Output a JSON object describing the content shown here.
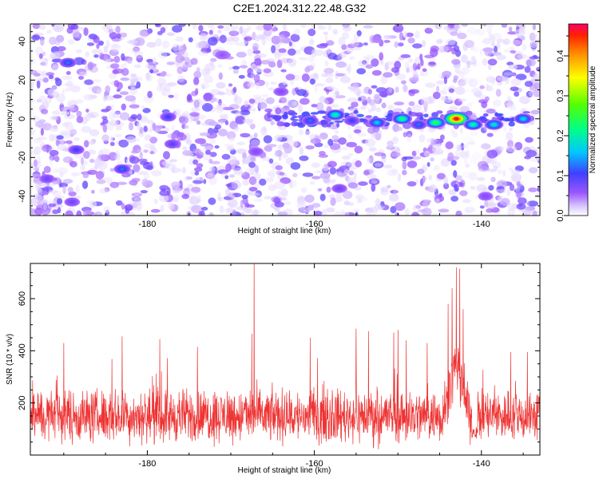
{
  "title": "C2E1.2024.312.22.48.G32",
  "colors": {
    "snr_line": "#ee3333",
    "spectrogram_base": "#7a2cf0",
    "frame": "#000000"
  },
  "chart_data": [
    {
      "type": "heatmap",
      "xlabel": "Height of straight line (km)",
      "ylabel": "Frequency (Hz)",
      "xlim": [
        -194,
        -133
      ],
      "ylim": [
        -50,
        49
      ],
      "x_ticks": [
        -180,
        -160,
        -140
      ],
      "x_tick_labels": [
        "-180",
        "-160",
        "-140"
      ],
      "y_ticks": [
        -40,
        -20,
        0,
        20,
        40
      ],
      "y_tick_labels": [
        "-40",
        "-20",
        "0",
        "20",
        "40"
      ],
      "colorbar": {
        "label": "Normalized spectral amplitude",
        "range": [
          0,
          0.48
        ],
        "ticks": [
          0.0,
          0.1,
          0.2,
          0.3,
          0.4
        ],
        "tick_labels": [
          "0.0",
          "0.1",
          "0.2",
          "0.3",
          "0.4"
        ],
        "colormap": "rainbow"
      },
      "signal_track": {
        "frequency_hz": 0,
        "peaks": [
          {
            "x": -143,
            "y": 0,
            "amp": 0.46
          },
          {
            "x": -145.5,
            "y": -2,
            "amp": 0.24
          },
          {
            "x": -141,
            "y": -3,
            "amp": 0.2
          },
          {
            "x": -138.5,
            "y": -3,
            "amp": 0.18
          },
          {
            "x": -135,
            "y": 0,
            "amp": 0.17
          },
          {
            "x": -149.5,
            "y": 0,
            "amp": 0.22
          },
          {
            "x": -152.5,
            "y": -2,
            "amp": 0.16
          },
          {
            "x": -157.5,
            "y": 2,
            "amp": 0.2
          },
          {
            "x": -160.5,
            "y": -1,
            "amp": 0.12
          },
          {
            "x": -147.5,
            "y": -3,
            "amp": 0.12
          },
          {
            "x": -155.5,
            "y": -1,
            "amp": 0.1
          }
        ],
        "background_blobs": [
          {
            "x": -189.5,
            "y": 29,
            "amp": 0.12
          },
          {
            "x": -183,
            "y": -26,
            "amp": 0.12
          },
          {
            "x": -192,
            "y": -31,
            "amp": 0.08
          },
          {
            "x": -188.5,
            "y": -16,
            "amp": 0.1
          },
          {
            "x": -177,
            "y": -13,
            "amp": 0.09
          },
          {
            "x": -177.5,
            "y": 1,
            "amp": 0.1
          },
          {
            "x": -189,
            "y": -43,
            "amp": 0.08
          },
          {
            "x": -164,
            "y": 14,
            "amp": 0.07
          },
          {
            "x": -157,
            "y": -36,
            "amp": 0.08
          },
          {
            "x": -167,
            "y": -17,
            "amp": 0.07
          },
          {
            "x": -139.5,
            "y": -40,
            "amp": 0.07
          },
          {
            "x": -171,
            "y": 33,
            "amp": 0.06
          }
        ]
      }
    },
    {
      "type": "line",
      "xlabel": "Height of straight line (km)",
      "ylabel": "SNR (10 * v/v)",
      "xlim": [
        -194,
        -133
      ],
      "ylim": [
        0,
        735
      ],
      "x_ticks": [
        -180,
        -160,
        -140
      ],
      "x_tick_labels": [
        "-180",
        "-160",
        "-140"
      ],
      "y_ticks": [
        200,
        400,
        600
      ],
      "y_tick_labels": [
        "200",
        "400",
        "600"
      ],
      "series": [
        {
          "noise_floor_mean": 150,
          "noise_spread": 90,
          "spikes": [
            {
              "x": -167.2,
              "y": 735
            },
            {
              "x": -167.5,
              "y": 465
            },
            {
              "x": -143,
              "y": 720
            },
            {
              "x": -142.6,
              "y": 715
            },
            {
              "x": -143.5,
              "y": 640
            },
            {
              "x": -144,
              "y": 580
            },
            {
              "x": -142.2,
              "y": 560
            },
            {
              "x": -178.5,
              "y": 445
            },
            {
              "x": -183,
              "y": 455
            },
            {
              "x": -155,
              "y": 485
            },
            {
              "x": -153.5,
              "y": 475
            },
            {
              "x": -150.5,
              "y": 470
            },
            {
              "x": -150,
              "y": 480
            },
            {
              "x": -146.5,
              "y": 430
            },
            {
              "x": -149,
              "y": 440
            },
            {
              "x": -136.5,
              "y": 395
            },
            {
              "x": -134.5,
              "y": 395
            },
            {
              "x": -190,
              "y": 430
            },
            {
              "x": -174,
              "y": 415
            },
            {
              "x": -160.5,
              "y": 450
            }
          ],
          "dip": {
            "x": -140.8,
            "y": 60
          }
        }
      ]
    }
  ]
}
